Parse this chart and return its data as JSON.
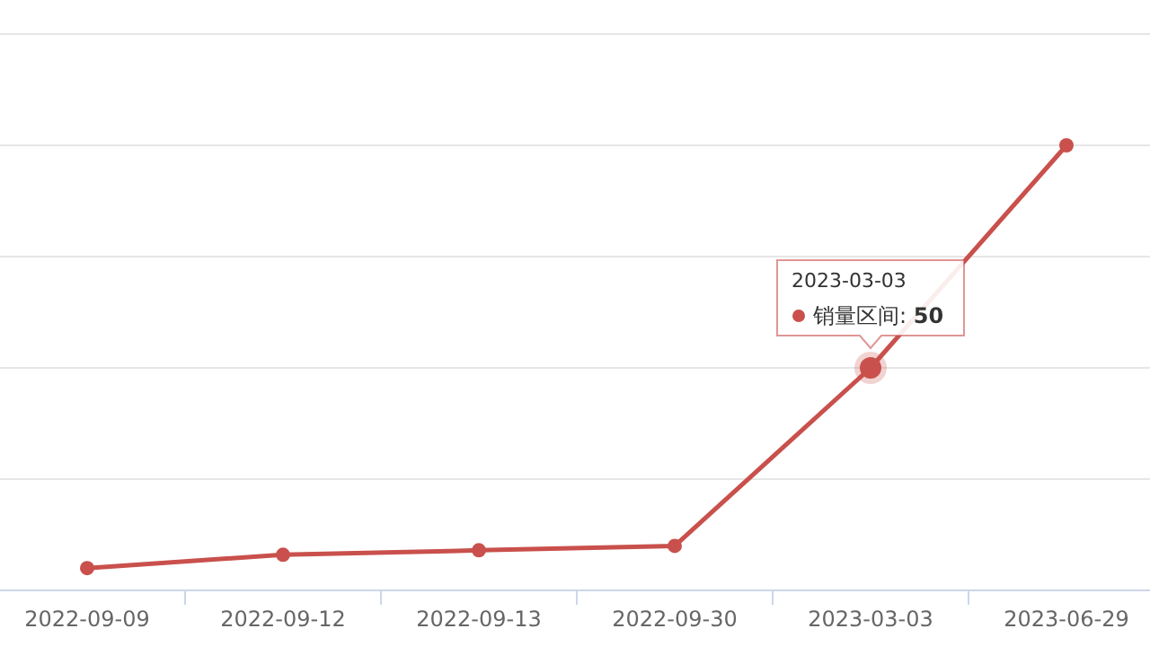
{
  "chart_data": {
    "type": "line",
    "categories": [
      "2022-09-09",
      "2022-09-12",
      "2022-09-13",
      "2022-09-30",
      "2023-03-03",
      "2023-06-29"
    ],
    "series": [
      {
        "name": "销量区间:",
        "color": "#c9504c",
        "values": [
          5,
          8,
          9,
          10,
          50,
          100
        ],
        "value_labels": [
          null,
          null,
          null,
          null,
          "50",
          null
        ]
      }
    ],
    "ylim": [
      0,
      125
    ],
    "yticks": [
      {
        "value": 0,
        "label": null
      },
      {
        "value": 25,
        "label": null
      },
      {
        "value": 50,
        "label": null
      },
      {
        "value": 75,
        "label": null
      },
      {
        "value": 100,
        "label": null
      },
      {
        "value": 125,
        "label": null
      }
    ],
    "tick_labels": "x",
    "grid": "y",
    "marker": "circle",
    "line_style": "solid"
  }
}
